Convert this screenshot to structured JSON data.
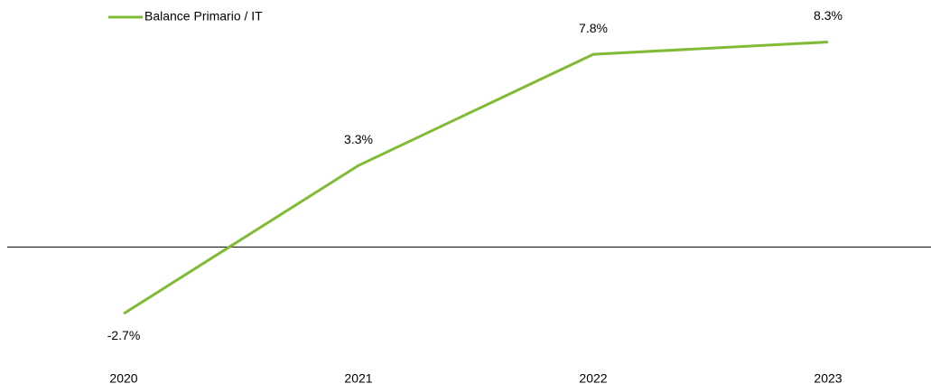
{
  "chart_data": {
    "type": "line",
    "categories": [
      "2020",
      "2021",
      "2022",
      "2023"
    ],
    "series": [
      {
        "name": "Balance Primario / IT",
        "color": "#80bb35",
        "values": [
          -2.7,
          3.3,
          7.8,
          8.3
        ],
        "value_labels": [
          "-2.7%",
          "3.3%",
          "7.8%",
          "8.3%"
        ]
      }
    ],
    "ylim": [
      -5,
      10
    ],
    "legend": "top-left"
  }
}
